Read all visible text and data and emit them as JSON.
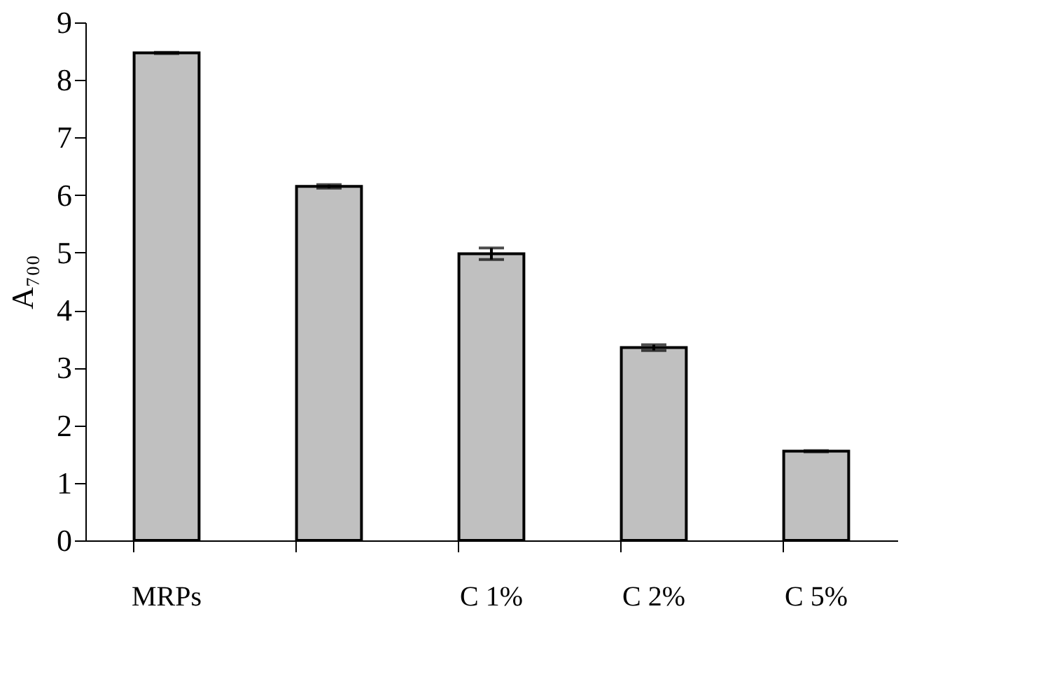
{
  "chart_data": {
    "type": "bar",
    "ylabel": "A₇₀₀",
    "categories": [
      "MRPs",
      null,
      "C 1%",
      "C 2%",
      "C 5%"
    ],
    "values": [
      8.47,
      6.15,
      4.98,
      3.35,
      1.55
    ],
    "errors": [
      0.01,
      0.03,
      0.1,
      0.05,
      0.01
    ],
    "color": "#c0c0c0",
    "ylim": [
      0,
      9
    ],
    "yticks": [
      0,
      1,
      2,
      3,
      4,
      5,
      6,
      7,
      8,
      9
    ],
    "grid": false
  }
}
